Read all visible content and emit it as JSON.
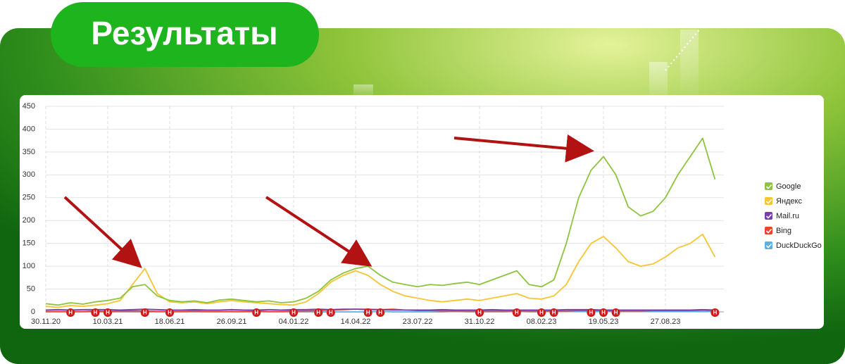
{
  "header": {
    "title": "Результаты"
  },
  "chart_data": {
    "type": "line",
    "categories": [
      "30.11.20",
      null,
      null,
      null,
      null,
      "10.03.21",
      null,
      null,
      null,
      null,
      "18.06.21",
      null,
      null,
      null,
      null,
      "26.09.21",
      null,
      null,
      null,
      null,
      "04.01.22",
      null,
      null,
      null,
      null,
      "14.04.22",
      null,
      null,
      null,
      null,
      "23.07.22",
      null,
      null,
      null,
      null,
      "31.10.22",
      null,
      null,
      null,
      null,
      "08.02.23",
      null,
      null,
      null,
      null,
      "19.05.23",
      null,
      null,
      null,
      null,
      "27.08.23",
      null,
      null,
      null,
      null
    ],
    "series": [
      {
        "name": "Google",
        "color": "#8cc43c",
        "values": [
          18,
          15,
          20,
          17,
          22,
          25,
          30,
          55,
          60,
          35,
          25,
          22,
          24,
          20,
          26,
          28,
          25,
          22,
          24,
          20,
          22,
          30,
          45,
          70,
          85,
          95,
          100,
          80,
          65,
          60,
          55,
          60,
          58,
          62,
          65,
          60,
          70,
          80,
          90,
          60,
          55,
          70,
          150,
          250,
          310,
          340,
          300,
          230,
          210,
          220,
          250,
          300,
          340,
          380,
          290
        ]
      },
      {
        "name": "Яндекс",
        "color": "#f6c531",
        "values": [
          12,
          10,
          14,
          12,
          15,
          18,
          25,
          60,
          95,
          40,
          22,
          20,
          22,
          18,
          22,
          25,
          22,
          20,
          18,
          16,
          15,
          22,
          40,
          65,
          80,
          90,
          80,
          60,
          45,
          35,
          30,
          25,
          22,
          25,
          28,
          25,
          30,
          35,
          40,
          30,
          28,
          35,
          60,
          110,
          150,
          165,
          140,
          110,
          100,
          105,
          120,
          140,
          150,
          170,
          120
        ]
      },
      {
        "name": "Mail.ru",
        "color": "#7b3cb0",
        "values": [
          4,
          5,
          4,
          5,
          5,
          5,
          4,
          5,
          6,
          5,
          4,
          4,
          5,
          4,
          4,
          5,
          4,
          4,
          5,
          4,
          5,
          5,
          6,
          5,
          6,
          6,
          5,
          5,
          4,
          4,
          4,
          4,
          5,
          4,
          4,
          4,
          5,
          4,
          4,
          4,
          4,
          4,
          5,
          5,
          5,
          4,
          4,
          4,
          4,
          4,
          4,
          4,
          4,
          5,
          4
        ]
      },
      {
        "name": "Bing",
        "color": "#e8452c",
        "values": [
          1,
          1,
          1,
          1,
          2,
          1,
          2,
          2,
          2,
          1,
          1,
          1,
          2,
          1,
          1,
          1,
          1,
          2,
          1,
          1,
          2,
          2,
          3,
          4,
          5,
          6,
          6,
          5,
          6,
          4,
          3,
          3,
          2,
          2,
          2,
          2,
          2,
          2,
          2,
          2,
          2,
          2,
          2,
          3,
          3,
          3,
          2,
          2,
          2,
          3,
          3,
          3,
          3,
          4,
          3
        ]
      },
      {
        "name": "DuckDuckGo",
        "color": "#5bb0e3",
        "values": [
          0,
          0,
          0,
          0,
          0,
          0,
          0,
          0,
          0,
          0,
          0,
          0,
          0,
          0,
          0,
          0,
          0,
          0,
          0,
          0,
          0,
          0,
          0,
          0,
          0,
          0,
          0,
          1,
          0,
          0,
          0,
          0,
          0,
          1,
          0,
          0,
          0,
          0,
          1,
          0,
          0,
          1,
          1,
          1,
          1,
          1,
          1,
          1,
          1,
          1,
          1,
          1,
          1,
          1,
          1
        ]
      }
    ],
    "ylim": [
      0,
      450
    ],
    "yticks": [
      0,
      50,
      100,
      150,
      200,
      250,
      300,
      350,
      400,
      450
    ],
    "grid": true,
    "legend": "right",
    "event_markers": {
      "label": "Н",
      "at": [
        2,
        4,
        5,
        8,
        10,
        17,
        20,
        22,
        23,
        26,
        27,
        35,
        38,
        40,
        41,
        44,
        45,
        46,
        54
      ]
    }
  }
}
